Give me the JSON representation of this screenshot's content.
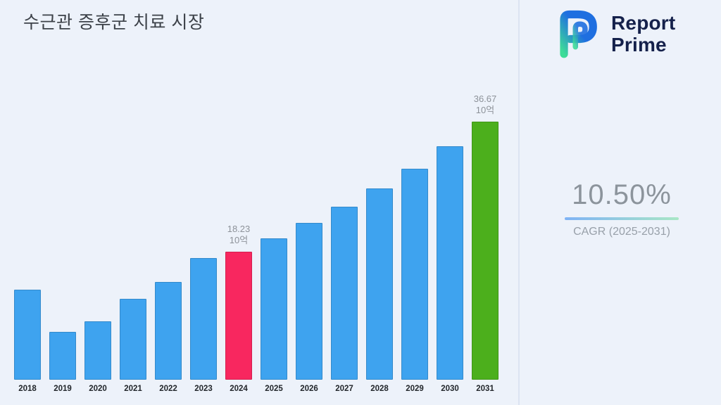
{
  "title": "수근관 증후군 치료 시장",
  "logo": {
    "name": "Report Prime",
    "line1": "Report",
    "line2": "Prime"
  },
  "stats": {
    "cagr_value": "10.50%",
    "cagr_label": "CAGR (2025-2031)"
  },
  "chart_data": {
    "type": "bar",
    "title": "수근관 증후군 치료 시장",
    "categories": [
      "2018",
      "2019",
      "2020",
      "2021",
      "2022",
      "2023",
      "2024",
      "2025",
      "2026",
      "2027",
      "2028",
      "2029",
      "2030",
      "2031"
    ],
    "values": [
      12.8,
      6.8,
      8.3,
      11.5,
      13.9,
      17.3,
      18.23,
      20.1,
      22.3,
      24.6,
      27.2,
      30.0,
      33.2,
      36.67
    ],
    "unit": "10억",
    "ylim": [
      0,
      44
    ],
    "grid": false,
    "legend": "none",
    "xlabel": "",
    "ylabel": "",
    "annotations": [
      {
        "category": "2024",
        "value_text": "18.23",
        "unit_text": "10억"
      },
      {
        "category": "2031",
        "value_text": "36.67",
        "unit_text": "10억"
      }
    ],
    "colors": {
      "default": "#3ea3ef",
      "2024": "#f8275f",
      "2031": "#4caf1c"
    }
  },
  "colors": {
    "background": "#edf2fa",
    "divider": "#dce4f2",
    "title": "#3c4148",
    "year_label": "#22262b",
    "annotation": "#8d9299",
    "cagr_value": "#8c949c",
    "cagr_label": "#98a0a9",
    "underline_from": "#7fb3f5",
    "underline_to": "#a9e7c6",
    "logo_text": "#15214b",
    "logo_grad_from": "#3ddc97",
    "logo_grad_to": "#1f6fe0"
  }
}
